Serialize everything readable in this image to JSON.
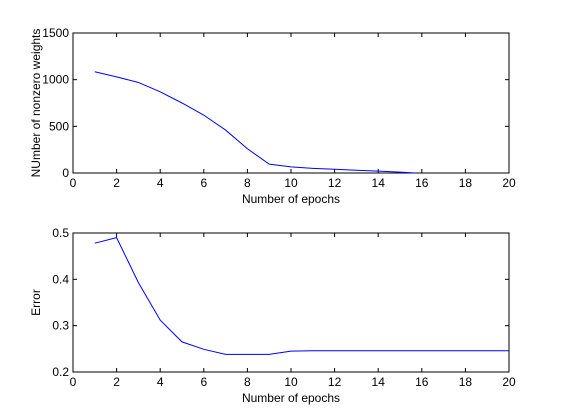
{
  "chart_data": [
    {
      "type": "line",
      "title": "",
      "xlabel": "Number of epochs",
      "ylabel": "NUmber of nonzero weights",
      "xlim": [
        0,
        20
      ],
      "ylim": [
        0,
        1500
      ],
      "xticks": [
        0,
        2,
        4,
        6,
        8,
        10,
        12,
        14,
        16,
        18,
        20
      ],
      "yticks": [
        0,
        500,
        1000,
        1500
      ],
      "grid": false,
      "series": [
        {
          "color": "#0000ff",
          "x": [
            1,
            2,
            3,
            4,
            5,
            6,
            7,
            8,
            9,
            10,
            11,
            12,
            13,
            14,
            15,
            15.7
          ],
          "y": [
            1085,
            1030,
            970,
            870,
            750,
            620,
            460,
            260,
            95,
            65,
            50,
            40,
            30,
            20,
            10,
            0
          ]
        }
      ]
    },
    {
      "type": "line",
      "title": "",
      "xlabel": "Number of epochs",
      "ylabel": "Error",
      "xlim": [
        0,
        20
      ],
      "ylim": [
        0.2,
        0.5
      ],
      "xticks": [
        0,
        2,
        4,
        6,
        8,
        10,
        12,
        14,
        16,
        18,
        20
      ],
      "yticks": [
        0.2,
        0.3,
        0.4,
        0.5
      ],
      "grid": false,
      "series": [
        {
          "color": "#0000ff",
          "x": [
            1,
            2,
            3,
            4,
            5,
            6,
            7,
            8,
            9,
            10,
            11,
            12,
            13,
            14,
            15,
            16,
            17,
            18,
            19,
            20
          ],
          "y": [
            0.478,
            0.49,
            0.393,
            0.312,
            0.265,
            0.249,
            0.238,
            0.238,
            0.238,
            0.245,
            0.246,
            0.246,
            0.246,
            0.246,
            0.246,
            0.246,
            0.246,
            0.246,
            0.246,
            0.246
          ]
        }
      ]
    }
  ]
}
